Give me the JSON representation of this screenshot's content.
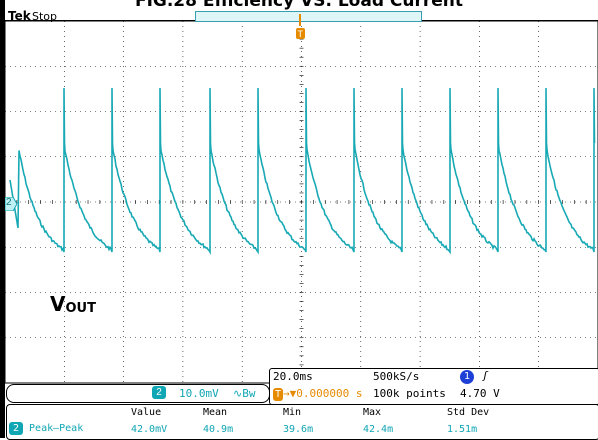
{
  "figure": {
    "title": "FIG.28 Efficiency VS. Load Current"
  },
  "scope": {
    "brand": "Tek",
    "status": "Stop",
    "channel_marker": "2",
    "trigger_marker": "T",
    "waveform_label": "V",
    "waveform_label_sub": "OUT",
    "colors": {
      "trace": "#18a9b4",
      "grid": "#000000",
      "background": "#ffffff"
    }
  },
  "scale": {
    "channel": "2",
    "volts_per_div": "10.0mV",
    "bandwidth_symbol": "∿Bw"
  },
  "timebase": {
    "time_per_div": "20.0ms",
    "sample_rate": "500kS/s",
    "trigger_channel": "1",
    "trigger_slope": "ʃ",
    "trigger_position": "→▼0.000000 s",
    "record_length": "100k points",
    "trigger_level": "4.70 V"
  },
  "measurements": {
    "headers": [
      "Value",
      "Mean",
      "Min",
      "Max",
      "Std Dev"
    ],
    "row": {
      "channel": "2",
      "name": "Peak–Peak",
      "values": [
        "42.0mV",
        "40.9m",
        "39.6m",
        "42.4m",
        "1.51m"
      ]
    }
  }
}
